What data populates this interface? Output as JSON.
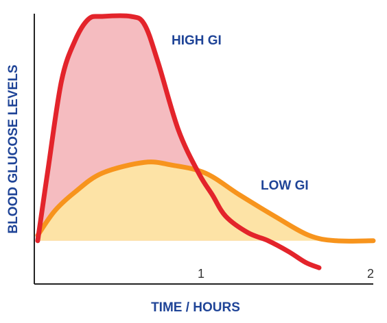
{
  "chart_data": {
    "type": "line",
    "xlabel": "TIME / HOURS",
    "ylabel": "BLOOD GLUCOSE LEVELS",
    "xlim": [
      0,
      2
    ],
    "xticks": [
      1,
      2
    ],
    "ylim": [
      0,
      100
    ],
    "series": [
      {
        "name": "HIGH GI",
        "color": "#e3242b",
        "fill": "#f5bcc0",
        "x": [
          0.02,
          0.08,
          0.16,
          0.24,
          0.32,
          0.4,
          0.57,
          0.65,
          0.73,
          0.85,
          0.97,
          1.05,
          1.13,
          1.26,
          1.38,
          1.5,
          1.6,
          1.68
        ],
        "values": [
          16,
          42,
          75,
          90,
          98,
          99,
          99,
          96,
          82,
          57,
          41,
          33,
          25,
          19,
          16,
          12,
          8,
          6
        ]
      },
      {
        "name": "LOW GI",
        "color": "#f7941d",
        "fill": "#fde3a6",
        "x": [
          0.02,
          0.12,
          0.24,
          0.4,
          0.65,
          0.81,
          1.01,
          1.21,
          1.42,
          1.62,
          1.78,
          2.0
        ],
        "values": [
          18,
          27,
          34,
          41,
          45,
          44,
          41,
          33,
          25,
          18,
          16,
          16
        ]
      }
    ]
  }
}
